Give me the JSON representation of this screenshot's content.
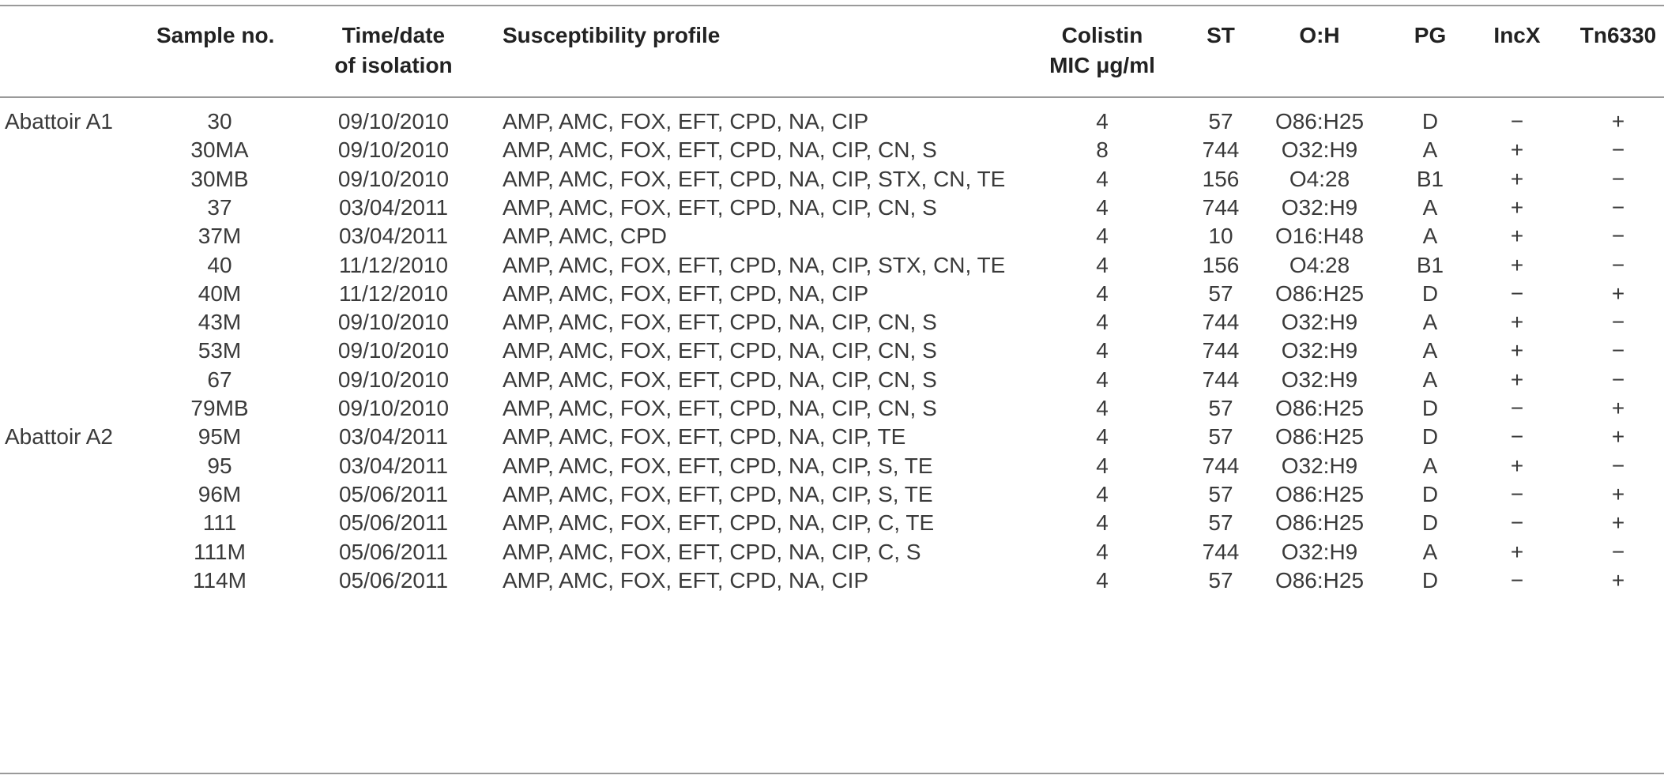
{
  "headers": {
    "group": "",
    "sample": "Sample no.",
    "time_line1": "Time/date",
    "time_line2": "of isolation",
    "profile": "Susceptibility profile",
    "colistin_line1": "Colistin",
    "colistin_line2": "MIC μg/ml",
    "st": "ST",
    "oh": "O:H",
    "pg": "PG",
    "incx": "IncX",
    "tn": "Tn6330"
  },
  "rows": [
    {
      "group": "Abattoir A1",
      "sample": "30",
      "date": "09/10/2010",
      "profile": "AMP, AMC, FOX, EFT, CPD, NA, CIP",
      "mic": "4",
      "st": "57",
      "oh": "O86:H25",
      "pg": "D",
      "incx": "−",
      "tn": "+"
    },
    {
      "group": "",
      "sample": "30MA",
      "date": "09/10/2010",
      "profile": "AMP, AMC, FOX, EFT, CPD, NA, CIP, CN, S",
      "mic": "8",
      "st": "744",
      "oh": "O32:H9",
      "pg": "A",
      "incx": "+",
      "tn": "−"
    },
    {
      "group": "",
      "sample": "30MB",
      "date": "09/10/2010",
      "profile": "AMP, AMC, FOX, EFT, CPD, NA, CIP, STX, CN, TE",
      "mic": "4",
      "st": "156",
      "oh": "O4:28",
      "pg": "B1",
      "incx": "+",
      "tn": "−"
    },
    {
      "group": "",
      "sample": "37",
      "date": "03/04/2011",
      "profile": "AMP, AMC, FOX, EFT, CPD, NA, CIP, CN, S",
      "mic": "4",
      "st": "744",
      "oh": "O32:H9",
      "pg": "A",
      "incx": "+",
      "tn": "−"
    },
    {
      "group": "",
      "sample": "37M",
      "date": "03/04/2011",
      "profile": "AMP, AMC, CPD",
      "mic": "4",
      "st": "10",
      "oh": "O16:H48",
      "pg": "A",
      "incx": "+",
      "tn": "−"
    },
    {
      "group": "",
      "sample": "40",
      "date": "11/12/2010",
      "profile": "AMP, AMC, FOX, EFT, CPD, NA, CIP, STX, CN, TE",
      "mic": "4",
      "st": "156",
      "oh": "O4:28",
      "pg": "B1",
      "incx": "+",
      "tn": "−"
    },
    {
      "group": "",
      "sample": "40M",
      "date": "11/12/2010",
      "profile": "AMP, AMC, FOX, EFT, CPD, NA, CIP",
      "mic": "4",
      "st": "57",
      "oh": "O86:H25",
      "pg": "D",
      "incx": "−",
      "tn": "+"
    },
    {
      "group": "",
      "sample": "43M",
      "date": "09/10/2010",
      "profile": "AMP, AMC, FOX, EFT, CPD, NA, CIP, CN, S",
      "mic": "4",
      "st": "744",
      "oh": "O32:H9",
      "pg": "A",
      "incx": "+",
      "tn": "−"
    },
    {
      "group": "",
      "sample": "53M",
      "date": "09/10/2010",
      "profile": "AMP, AMC, FOX, EFT, CPD, NA, CIP, CN, S",
      "mic": "4",
      "st": "744",
      "oh": "O32:H9",
      "pg": "A",
      "incx": "+",
      "tn": "−"
    },
    {
      "group": "",
      "sample": "67",
      "date": "09/10/2010",
      "profile": "AMP, AMC, FOX, EFT, CPD, NA, CIP, CN, S",
      "mic": "4",
      "st": "744",
      "oh": "O32:H9",
      "pg": "A",
      "incx": "+",
      "tn": "−"
    },
    {
      "group": "",
      "sample": "79MB",
      "date": "09/10/2010",
      "profile": "AMP, AMC, FOX, EFT, CPD, NA, CIP, CN, S",
      "mic": "4",
      "st": "57",
      "oh": "O86:H25",
      "pg": "D",
      "incx": "−",
      "tn": "+"
    },
    {
      "group": "Abattoir A2",
      "sample": "95M",
      "date": "03/04/2011",
      "profile": "AMP, AMC, FOX, EFT, CPD, NA, CIP, TE",
      "mic": "4",
      "st": "57",
      "oh": "O86:H25",
      "pg": "D",
      "incx": "−",
      "tn": "+"
    },
    {
      "group": "",
      "sample": "95",
      "date": "03/04/2011",
      "profile": "AMP, AMC, FOX, EFT, CPD, NA, CIP, S, TE",
      "mic": "4",
      "st": "744",
      "oh": "O32:H9",
      "pg": "A",
      "incx": "+",
      "tn": "−"
    },
    {
      "group": "",
      "sample": "96M",
      "date": "05/06/2011",
      "profile": "AMP, AMC, FOX, EFT, CPD, NA, CIP, S, TE",
      "mic": "4",
      "st": "57",
      "oh": "O86:H25",
      "pg": "D",
      "incx": "−",
      "tn": "+"
    },
    {
      "group": "",
      "sample": "111",
      "date": "05/06/2011",
      "profile": "AMP, AMC, FOX, EFT, CPD, NA, CIP, C, TE",
      "mic": "4",
      "st": "57",
      "oh": "O86:H25",
      "pg": "D",
      "incx": "−",
      "tn": "+"
    },
    {
      "group": "",
      "sample": "111M",
      "date": "05/06/2011",
      "profile": "AMP, AMC, FOX, EFT, CPD, NA, CIP, C, S",
      "mic": "4",
      "st": "744",
      "oh": "O32:H9",
      "pg": "A",
      "incx": "+",
      "tn": "−"
    },
    {
      "group": "",
      "sample": "114M",
      "date": "05/06/2011",
      "profile": "AMP, AMC, FOX, EFT, CPD, NA, CIP",
      "mic": "4",
      "st": "57",
      "oh": "O86:H25",
      "pg": "D",
      "incx": "−",
      "tn": "+"
    }
  ]
}
